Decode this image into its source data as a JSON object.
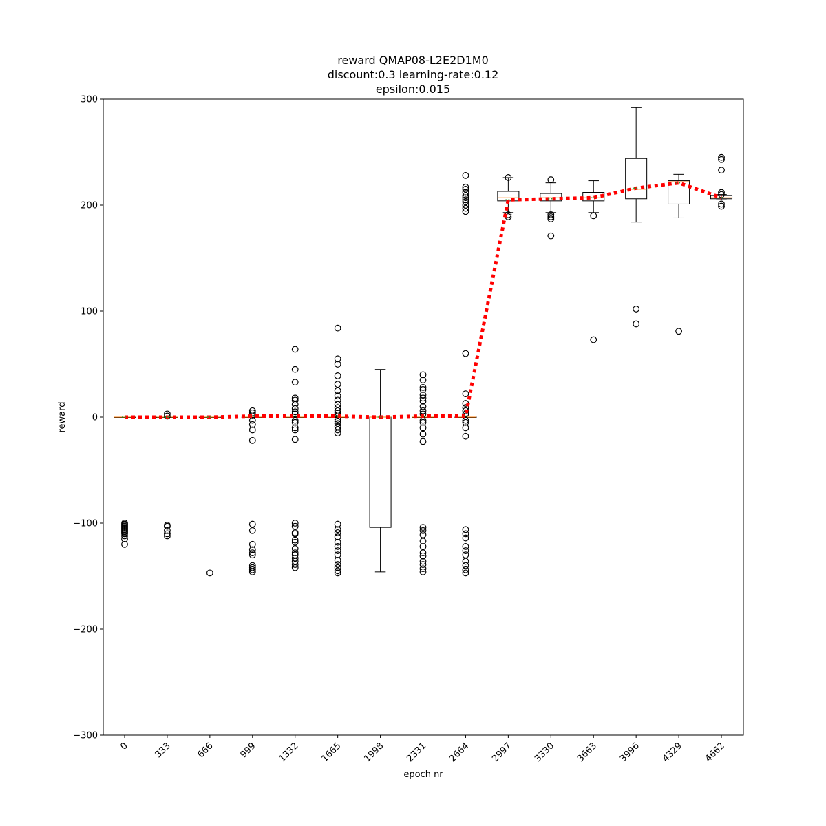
{
  "chart_data": {
    "type": "box",
    "title_lines": [
      "reward QMAP08-L2E2D1M0",
      "discount:0.3 learning-rate:0.12",
      "epsilon:0.015"
    ],
    "xlabel": "epoch nr",
    "ylabel": "reward",
    "ylim": [
      -300,
      300
    ],
    "yticks": [
      -300,
      -200,
      -100,
      0,
      100,
      200,
      300
    ],
    "categories": [
      "0",
      "333",
      "666",
      "999",
      "1332",
      "1665",
      "1998",
      "2331",
      "2664",
      "2997",
      "3330",
      "3663",
      "3996",
      "4329",
      "4662"
    ],
    "boxes": [
      {
        "q1": 0,
        "median": 0,
        "q3": 0,
        "whisker_low": 0,
        "whisker_high": 0,
        "fliers": [
          -100,
          -101,
          -102,
          -103,
          -104,
          -105,
          -106,
          -107,
          -108,
          -109,
          -110,
          -112,
          -115,
          -120
        ]
      },
      {
        "q1": 0,
        "median": 0,
        "q3": 0,
        "whisker_low": 0,
        "whisker_high": 0,
        "fliers": [
          3,
          1,
          -102,
          -103,
          -107,
          -110,
          -112
        ]
      },
      {
        "q1": 0,
        "median": 0,
        "q3": 0,
        "whisker_low": 0,
        "whisker_high": 0,
        "fliers": [
          -147
        ]
      },
      {
        "q1": 0,
        "median": 0,
        "q3": 0,
        "whisker_low": 0,
        "whisker_high": 0,
        "fliers": [
          6,
          4,
          2,
          -3,
          -7,
          -12,
          -22,
          -101,
          -107,
          -120,
          -125,
          -128,
          -130,
          -140,
          -142,
          -144,
          -146
        ]
      },
      {
        "q1": 0,
        "median": 0,
        "q3": 0,
        "whisker_low": 0,
        "whisker_high": 0,
        "fliers": [
          64,
          45,
          33,
          18,
          16,
          12,
          8,
          5,
          3,
          -3,
          -5,
          -10,
          -12,
          -21,
          -100,
          -103,
          -109,
          -110,
          -116,
          -118,
          -124,
          -128,
          -130,
          -133,
          -136,
          -139,
          -142
        ]
      },
      {
        "q1": 0,
        "median": 0,
        "q3": 0,
        "whisker_low": 0,
        "whisker_high": 0,
        "fliers": [
          84,
          55,
          50,
          39,
          31,
          25,
          20,
          16,
          12,
          9,
          6,
          4,
          2,
          -2,
          -4,
          -6,
          -9,
          -12,
          -15,
          -101,
          -106,
          -109,
          -113,
          -118,
          -122,
          -126,
          -130,
          -135,
          -139,
          -142,
          -145,
          -147
        ]
      },
      {
        "q1": -104,
        "median": 0,
        "q3": 0,
        "whisker_low": -146,
        "whisker_high": 45,
        "fliers": []
      },
      {
        "q1": 0,
        "median": 0,
        "q3": 0,
        "whisker_low": 0,
        "whisker_high": 0,
        "fliers": [
          40,
          35,
          28,
          26,
          21,
          18,
          15,
          10,
          6,
          3,
          -3,
          -5,
          -10,
          -16,
          -23,
          -104,
          -107,
          -111,
          -117,
          -122,
          -128,
          -131,
          -136,
          -139,
          -143,
          -146
        ]
      },
      {
        "q1": 0,
        "median": 0,
        "q3": 0,
        "whisker_low": 0,
        "whisker_high": 0,
        "fliers": [
          228,
          217,
          215,
          212,
          209,
          207,
          205,
          203,
          200,
          197,
          194,
          60,
          22,
          13,
          9,
          6,
          3,
          -3,
          -5,
          -10,
          -18,
          -106,
          -110,
          -114,
          -122,
          -126,
          -130,
          -136,
          -140,
          -144,
          -147
        ]
      },
      {
        "q1": 204,
        "median": 207,
        "q3": 213,
        "whisker_low": 193,
        "whisker_high": 226,
        "fliers": [
          226,
          191,
          189
        ]
      },
      {
        "q1": 204,
        "median": 207,
        "q3": 211,
        "whisker_low": 193,
        "whisker_high": 221,
        "fliers": [
          224,
          191,
          189,
          187,
          171
        ]
      },
      {
        "q1": 204,
        "median": 207,
        "q3": 212,
        "whisker_low": 193,
        "whisker_high": 223,
        "fliers": [
          190,
          73
        ]
      },
      {
        "q1": 206,
        "median": 215,
        "q3": 244,
        "whisker_low": 184,
        "whisker_high": 292,
        "fliers": [
          102,
          88
        ]
      },
      {
        "q1": 201,
        "median": 222,
        "q3": 223,
        "whisker_low": 188,
        "whisker_high": 229,
        "fliers": [
          81
        ]
      },
      {
        "q1": 206,
        "median": 207,
        "q3": 209,
        "whisker_low": 205,
        "whisker_high": 210,
        "fliers": [
          245,
          243,
          233,
          212,
          210,
          201,
          199
        ]
      }
    ],
    "mean_line": {
      "name": "",
      "color": "#ff0000",
      "style": "dotted",
      "values": [
        0,
        0,
        0,
        1,
        1,
        1,
        0,
        1,
        1,
        205,
        206,
        207,
        216,
        221,
        207
      ]
    },
    "colors": {
      "box": "#000000",
      "median": "#ff7f0e",
      "mean_line": "#ff0000",
      "mean_marker": "#2ca02c"
    },
    "grid": false,
    "legend": "none"
  }
}
